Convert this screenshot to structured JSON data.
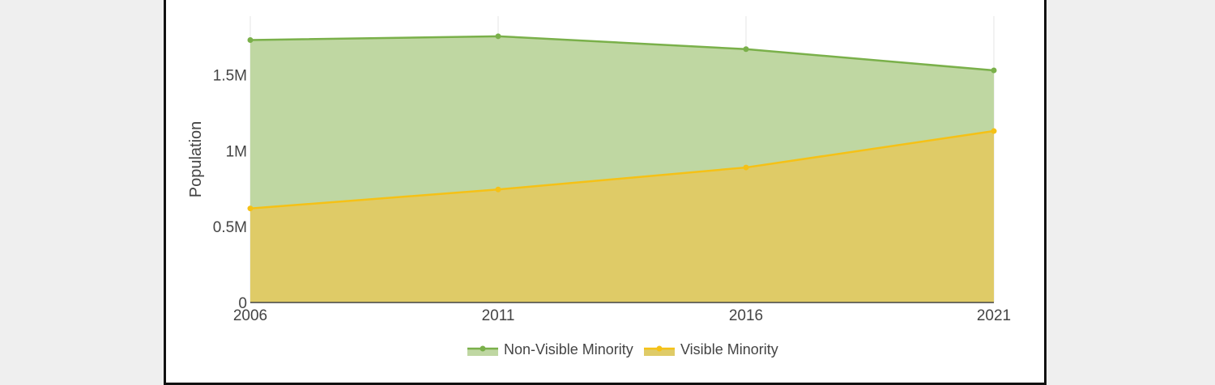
{
  "chart_data": {
    "type": "area",
    "stacked": true,
    "x": [
      "2006",
      "2011",
      "2016",
      "2021"
    ],
    "xlabel": "",
    "ylabel": "Population",
    "ylim": [
      0,
      1850000
    ],
    "yticks": [
      {
        "value": 0,
        "label": "0"
      },
      {
        "value": 500000,
        "label": "0.5M"
      },
      {
        "value": 1000000,
        "label": "1M"
      },
      {
        "value": 1500000,
        "label": "1.5M"
      }
    ],
    "series": [
      {
        "name": "Visible Minority",
        "color": "#f5c116",
        "fill": "#dfcb67",
        "values": [
          620000,
          745000,
          890000,
          1130000
        ]
      },
      {
        "name": "Non-Visible Minority",
        "color": "#7ab04a",
        "fill": "#bfd7a2",
        "values": [
          1110000,
          1010000,
          780000,
          400000
        ]
      }
    ],
    "legend": {
      "position": "bottom-center",
      "order": [
        "Non-Visible Minority",
        "Visible Minority"
      ]
    },
    "grid": {
      "vertical": true,
      "horizontal": false
    }
  }
}
